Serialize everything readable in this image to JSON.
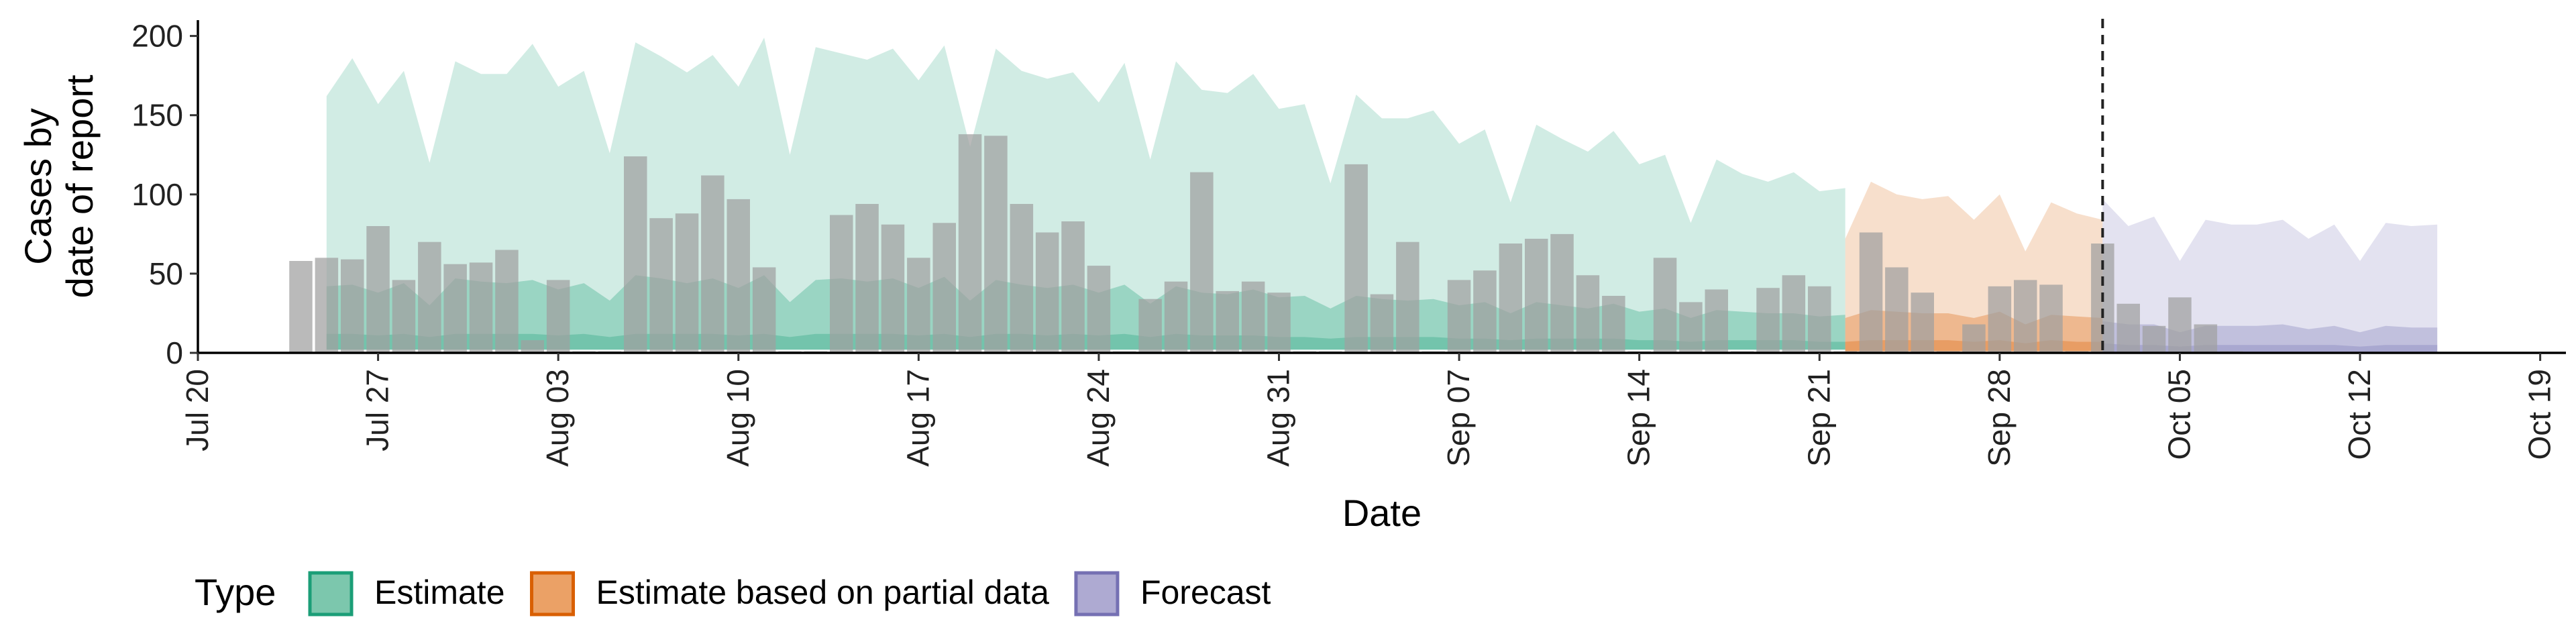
{
  "chart_data": {
    "type": "bar",
    "xlabel": "Date",
    "ylabel": [
      "Cases by",
      "date of report"
    ],
    "ylim": [
      0,
      210
    ],
    "xlim": [
      "2020-07-20",
      "2020-10-20"
    ],
    "y_ticks": [
      0,
      50,
      100,
      150,
      200
    ],
    "x_ticks": [
      {
        "date": "2020-07-20",
        "label": "Jul 20"
      },
      {
        "date": "2020-07-27",
        "label": "Jul 27"
      },
      {
        "date": "2020-08-03",
        "label": "Aug 03"
      },
      {
        "date": "2020-08-10",
        "label": "Aug 10"
      },
      {
        "date": "2020-08-17",
        "label": "Aug 17"
      },
      {
        "date": "2020-08-24",
        "label": "Aug 24"
      },
      {
        "date": "2020-08-31",
        "label": "Aug 31"
      },
      {
        "date": "2020-09-07",
        "label": "Sep 07"
      },
      {
        "date": "2020-09-14",
        "label": "Sep 14"
      },
      {
        "date": "2020-09-21",
        "label": "Sep 21"
      },
      {
        "date": "2020-09-28",
        "label": "Sep 28"
      },
      {
        "date": "2020-10-05",
        "label": "Oct 05"
      },
      {
        "date": "2020-10-12",
        "label": "Oct 12"
      },
      {
        "date": "2020-10-19",
        "label": "Oct 19"
      }
    ],
    "forecast_line_date": "2020-10-02",
    "grid": false,
    "legend": {
      "title": "Type",
      "placement": "bottom",
      "entries": [
        {
          "label": "Estimate",
          "fill": "#7cc7ad",
          "stroke": "#1b9e77"
        },
        {
          "label": "Estimate based on partial data",
          "fill": "#eba166",
          "stroke": "#d95f02"
        },
        {
          "label": "Forecast",
          "fill": "#aeaad2",
          "stroke": "#7570b3"
        }
      ]
    },
    "colors": {
      "Estimate": "#1b9e77",
      "Estimate based on partial data": "#d95f02",
      "Forecast": "#7570b3",
      "bars": "#a0a0a0",
      "forecast_line": "#222222"
    },
    "bars": {
      "start_date": "2020-07-24",
      "values": [
        58,
        60,
        59,
        80,
        46,
        70,
        56,
        57,
        65,
        8,
        46,
        1,
        1,
        124,
        85,
        88,
        112,
        97,
        54,
        1,
        1,
        87,
        94,
        81,
        60,
        82,
        138,
        137,
        94,
        76,
        83,
        55,
        1,
        34,
        45,
        114,
        39,
        45,
        38,
        1,
        1,
        119,
        37,
        70,
        1,
        46,
        52,
        69,
        72,
        75,
        49,
        36,
        1,
        60,
        32,
        40,
        1,
        41,
        49,
        42,
        1,
        76,
        54,
        38,
        1,
        18,
        42,
        46,
        43,
        1,
        69,
        31,
        17,
        35,
        18,
        1
      ]
    },
    "ribbons": [
      {
        "type": "Estimate",
        "start_date": "2020-07-25",
        "upper90": [
          162,
          186,
          157,
          178,
          120,
          184,
          176,
          176,
          195,
          168,
          178,
          126,
          196,
          187,
          177,
          188,
          168,
          199,
          125,
          193,
          189,
          185,
          192,
          172,
          194,
          130,
          192,
          178,
          173,
          177,
          158,
          183,
          122,
          184,
          166,
          164,
          176,
          154,
          157,
          107,
          163,
          148,
          148,
          153,
          132,
          141,
          95,
          144,
          135,
          127,
          140,
          119,
          125,
          82,
          122,
          113,
          108,
          114,
          102,
          104
        ],
        "upper50": [
          42,
          43,
          38,
          44,
          30,
          47,
          45,
          44,
          46,
          40,
          44,
          33,
          49,
          47,
          44,
          47,
          41,
          49,
          32,
          46,
          47,
          45,
          47,
          41,
          48,
          33,
          46,
          43,
          41,
          43,
          38,
          43,
          31,
          42,
          38,
          37,
          40,
          35,
          36,
          28,
          36,
          34,
          33,
          34,
          30,
          32,
          25,
          32,
          30,
          28,
          31,
          26,
          28,
          22,
          27,
          26,
          25,
          25,
          23,
          24
        ],
        "upper20": [
          12,
          12,
          11,
          12,
          10,
          12,
          12,
          12,
          12,
          11,
          12,
          10,
          12,
          12,
          12,
          12,
          11,
          12,
          10,
          12,
          12,
          12,
          12,
          11,
          12,
          10,
          12,
          12,
          11,
          12,
          11,
          12,
          10,
          12,
          11,
          11,
          11,
          10,
          10,
          9,
          10,
          10,
          10,
          10,
          9,
          9,
          8,
          9,
          9,
          9,
          9,
          8,
          8,
          7,
          8,
          8,
          8,
          8,
          7,
          7
        ],
        "lower": [
          2,
          2,
          2,
          2,
          2,
          2,
          2,
          2,
          2,
          2,
          2,
          2,
          2,
          2,
          2,
          2,
          2,
          2,
          2,
          2,
          2,
          2,
          2,
          2,
          2,
          2,
          2,
          2,
          2,
          2,
          2,
          2,
          2,
          2,
          2,
          2,
          2,
          2,
          2,
          2,
          2,
          2,
          2,
          2,
          2,
          2,
          2,
          2,
          2,
          2,
          2,
          2,
          2,
          2,
          2,
          2,
          2,
          2,
          2,
          2
        ]
      },
      {
        "type": "Estimate based on partial data",
        "start_date": "2020-09-22",
        "upper90": [
          72,
          108,
          100,
          97,
          99,
          84,
          100,
          64,
          95,
          88,
          84
        ],
        "upper50": [
          22,
          27,
          26,
          25,
          25,
          22,
          26,
          18,
          24,
          23,
          22
        ],
        "upper20": [
          7,
          8,
          8,
          8,
          8,
          7,
          8,
          6,
          8,
          7,
          7
        ],
        "lower": [
          1,
          1,
          1,
          1,
          1,
          1,
          1,
          1,
          1,
          1,
          1
        ]
      },
      {
        "type": "Forecast",
        "start_date": "2020-10-02",
        "upper90": [
          97,
          80,
          86,
          58,
          84,
          81,
          81,
          84,
          72,
          81,
          58,
          82,
          80,
          81
        ],
        "upper50": [
          20,
          18,
          18,
          13,
          17,
          17,
          17,
          18,
          15,
          17,
          13,
          17,
          16,
          16
        ],
        "upper20": [
          6,
          5,
          5,
          4,
          5,
          5,
          5,
          5,
          5,
          5,
          4,
          5,
          5,
          5
        ],
        "lower": [
          0,
          0,
          0,
          0,
          0,
          0,
          0,
          0,
          0,
          0,
          0,
          0,
          0,
          0
        ]
      }
    ]
  }
}
